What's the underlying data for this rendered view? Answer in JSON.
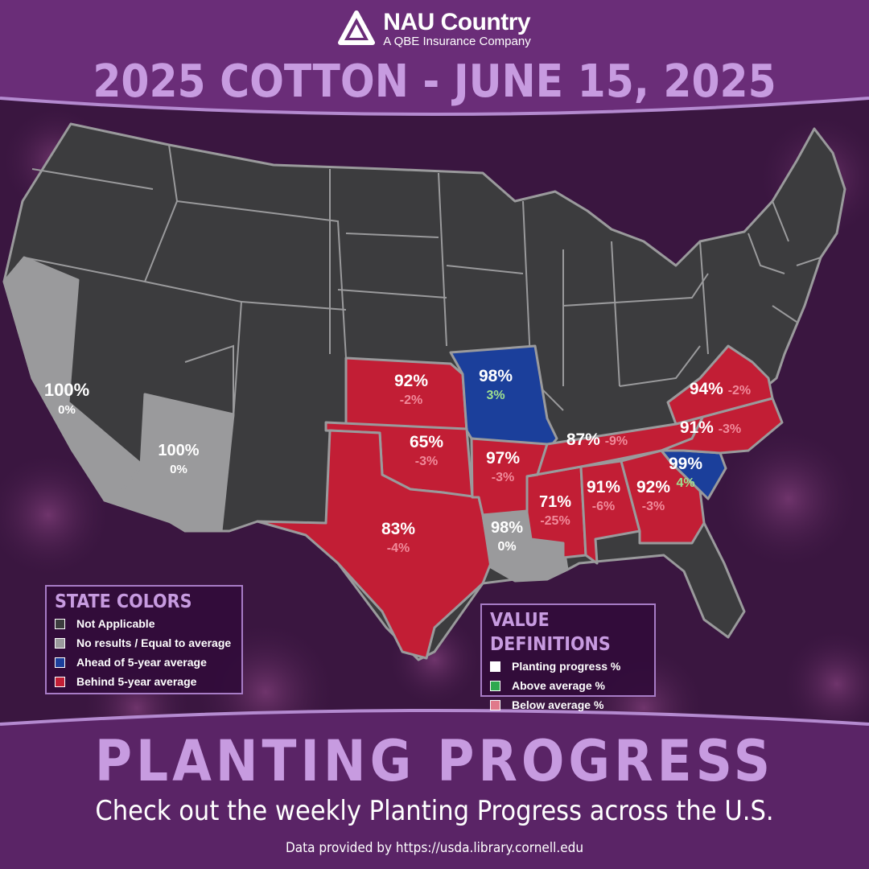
{
  "colors": {
    "not_applicable": "#3c3c3e",
    "no_change": "#9a9a9c",
    "ahead": "#1b3f9b",
    "behind": "#c21e35",
    "progress_text": "#ffffff",
    "above_text": "#9fe08f",
    "below_text": "#f08a9a",
    "accent": "#c79be0"
  },
  "brand": {
    "name": "NAU Country",
    "subtitle": "A QBE Insurance Company",
    "logo_icon": "nau-country-logo-icon"
  },
  "title": "2025 COTTON - JUNE 15, 2025",
  "states": [
    {
      "state": "California",
      "progress": "100%",
      "change": "0%",
      "category": "no_change"
    },
    {
      "state": "Arizona",
      "progress": "100%",
      "change": "0%",
      "category": "no_change"
    },
    {
      "state": "Kansas",
      "progress": "92%",
      "change": "-2%",
      "category": "behind"
    },
    {
      "state": "Missouri",
      "progress": "98%",
      "change": "3%",
      "category": "ahead"
    },
    {
      "state": "Oklahoma",
      "progress": "65%",
      "change": "-3%",
      "category": "behind"
    },
    {
      "state": "Texas",
      "progress": "83%",
      "change": "-4%",
      "category": "behind"
    },
    {
      "state": "Arkansas",
      "progress": "97%",
      "change": "-3%",
      "category": "behind"
    },
    {
      "state": "Louisiana",
      "progress": "98%",
      "change": "0%",
      "category": "no_change"
    },
    {
      "state": "Mississippi",
      "progress": "71%",
      "change": "-25%",
      "category": "behind"
    },
    {
      "state": "Tennessee",
      "progress": "87%",
      "change": "-9%",
      "category": "behind"
    },
    {
      "state": "Alabama",
      "progress": "91%",
      "change": "-6%",
      "category": "behind"
    },
    {
      "state": "Georgia",
      "progress": "92%",
      "change": "-3%",
      "category": "behind"
    },
    {
      "state": "South Carolina",
      "progress": "99%",
      "change": "4%",
      "category": "ahead"
    },
    {
      "state": "North Carolina",
      "progress": "91%",
      "change": "-3%",
      "category": "behind"
    },
    {
      "state": "Virginia",
      "progress": "94%",
      "change": "-2%",
      "category": "behind"
    }
  ],
  "legend_states": {
    "title": "STATE COLORS",
    "items": [
      {
        "label": "Not Applicable",
        "color": "#3c3c3e"
      },
      {
        "label": "No results / Equal to average",
        "color": "#9a9a9c"
      },
      {
        "label": "Ahead of 5-year average",
        "color": "#1b3f9b"
      },
      {
        "label": "Behind 5-year average",
        "color": "#c21e35"
      }
    ]
  },
  "legend_values": {
    "title": "VALUE DEFINITIONS",
    "items": [
      {
        "label": "Planting progress %",
        "color": "#ffffff"
      },
      {
        "label": "Above average %",
        "color": "#2fa84f"
      },
      {
        "label": "Below average %",
        "color": "#e07a8a"
      }
    ]
  },
  "footer": {
    "title": "PLANTING PROGRESS",
    "subtitle": "Check out the weekly Planting Progress across the U.S.",
    "source": "Data provided by https://usda.library.cornell.edu"
  }
}
